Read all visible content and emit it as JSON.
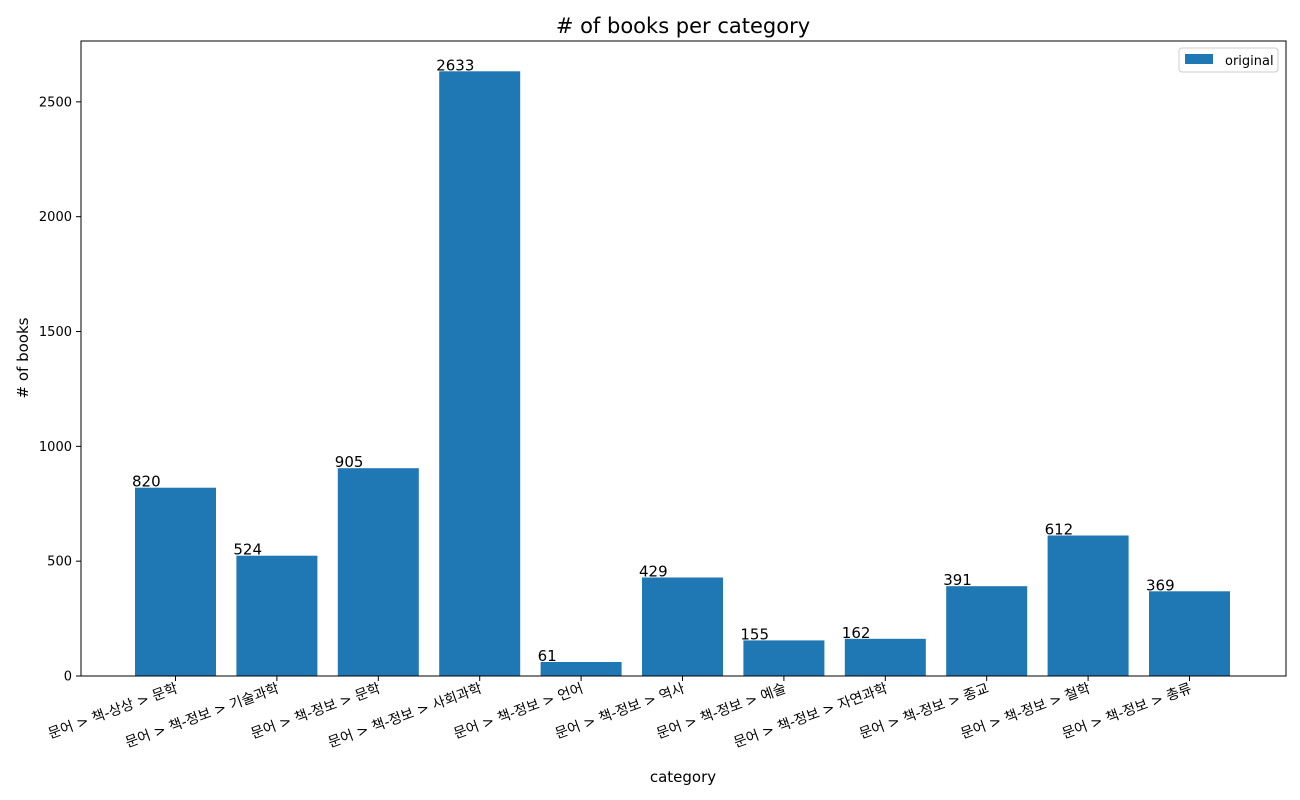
{
  "chart_data": {
    "type": "bar",
    "title": "# of books per category",
    "xlabel": "category",
    "ylabel": "# of books",
    "categories": [
      "문어 > 책-상상 > 문학",
      "문어 > 책-정보 > 기술과학",
      "문어 > 책-정보 > 문학",
      "문어 > 책-정보 > 사회과학",
      "문어 > 책-정보 > 언어",
      "문어 > 책-정보 > 역사",
      "문어 > 책-정보 > 예술",
      "문어 > 책-정보 > 자연과학",
      "문어 > 책-정보 > 종교",
      "문어 > 책-정보 > 철학",
      "문어 > 책-정보 > 총류"
    ],
    "series": [
      {
        "name": "original",
        "values": [
          820,
          524,
          905,
          2633,
          61,
          429,
          155,
          162,
          391,
          612,
          369
        ]
      }
    ],
    "data_labels": [
      "820",
      "524",
      "905",
      "2633",
      "61",
      "429",
      "155",
      "162",
      "391",
      "612",
      "369"
    ],
    "yticks": [
      0,
      500,
      1000,
      1500,
      2000,
      2500
    ],
    "ylim": [
      0,
      2765
    ],
    "grid": false,
    "legend": {
      "position": "top-right"
    },
    "colors": {
      "bar": "#1f77b4",
      "axis": "#000000"
    }
  }
}
